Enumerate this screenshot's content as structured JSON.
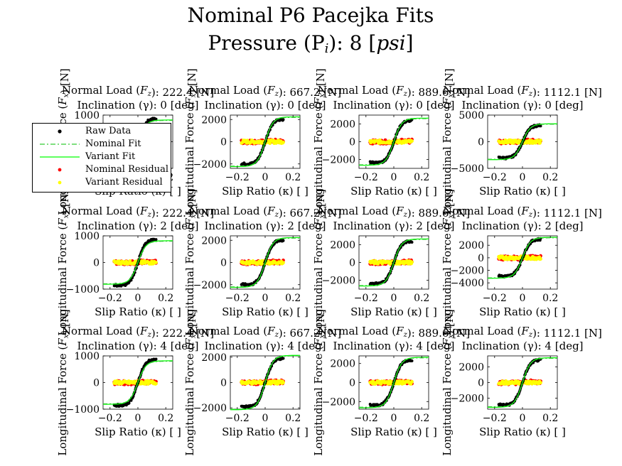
{
  "title_line1": "Nominal P6 Pacejka Fits",
  "title_line2": "Pressure (P",
  "title_line2_sub": "i",
  "title_line2_rest": "): 8 [",
  "title_line2_unit": "psi",
  "title_line2_end": "]",
  "colors": {
    "raw": "#000000",
    "nominal_fit": "#33cc33",
    "variant_fit": "#00ff00",
    "nominal_residual": "#ff0000",
    "variant_residual": "#ffff00"
  },
  "legend": [
    {
      "label": "Raw Data",
      "symbol": "dot",
      "color": "#000000"
    },
    {
      "label": "Nominal Fit",
      "symbol": "dashdot",
      "color": "#33cc33"
    },
    {
      "label": "Variant Fit",
      "symbol": "line",
      "color": "#00ff00"
    },
    {
      "label": "Nominal Residual",
      "symbol": "dot",
      "color": "#ff0000"
    },
    {
      "label": "Variant Residual",
      "symbol": "dot",
      "color": "#ffff00"
    }
  ],
  "chart_data": [
    {
      "type": "line",
      "row": 0,
      "col": 0,
      "title1": "Normal Load (F_z): 222.4 [N]",
      "title2": "Inclination (γ): 0 [deg]",
      "xlabel": "Slip Ratio (κ) [ ]",
      "ylabel": "Longitudinal Force (F_x) [N]",
      "xlim": [
        -0.25,
        0.25
      ],
      "ylim": [
        -1000,
        1000
      ],
      "yticks": [
        -1000,
        0,
        1000
      ],
      "xticks": [
        -0.2,
        0,
        0.2
      ],
      "peak": 900,
      "sat": 800
    },
    {
      "type": "line",
      "row": 0,
      "col": 1,
      "title1": "Normal Load (F_z): 667.2 [N]",
      "title2": "Inclination (γ): 0 [deg]",
      "xlabel": "Slip Ratio (κ) [ ]",
      "ylabel": "Longitudinal Force (F_x) [N]",
      "xlim": [
        -0.25,
        0.25
      ],
      "ylim": [
        -2400,
        2400
      ],
      "yticks": [
        -2000,
        0,
        2000
      ],
      "xticks": [
        -0.2,
        0,
        0.2
      ],
      "peak": 2100,
      "sat": 2200
    },
    {
      "type": "line",
      "row": 0,
      "col": 2,
      "title1": "Normal Load (F_z): 889.6 [N]",
      "title2": "Inclination (γ): 0 [deg]",
      "xlabel": "Slip Ratio (κ) [ ]",
      "ylabel": "Longitudinal Force (F_x) [N]",
      "xlim": [
        -0.25,
        0.25
      ],
      "ylim": [
        -3000,
        3000
      ],
      "yticks": [
        -2000,
        0,
        2000
      ],
      "xticks": [
        -0.2,
        0,
        0.2
      ],
      "peak": 2500,
      "sat": 2600
    },
    {
      "type": "line",
      "row": 0,
      "col": 3,
      "title1": "Normal Load (F_z): 1112.1 [N]",
      "title2": "Inclination (γ): 0 [deg]",
      "xlabel": "Slip Ratio (κ) [ ]",
      "ylabel": "Longitudinal Force (F_x) [N]",
      "xlim": [
        -0.25,
        0.25
      ],
      "ylim": [
        -5000,
        5000
      ],
      "yticks": [
        -5000,
        0,
        5000
      ],
      "xticks": [
        -0.2,
        0,
        0.2
      ],
      "peak": 3200,
      "sat": 3300
    },
    {
      "type": "line",
      "row": 1,
      "col": 0,
      "title1": "Normal Load (F_z): 222.4 [N]",
      "title2": "Inclination (γ): 2 [deg]",
      "xlabel": "Slip Ratio (κ) [ ]",
      "ylabel": "Longitudinal Force (F_x) [N]",
      "xlim": [
        -0.25,
        0.25
      ],
      "ylim": [
        -1000,
        1000
      ],
      "yticks": [
        -1000,
        0,
        1000
      ],
      "xticks": [
        -0.2,
        0,
        0.2
      ],
      "peak": 900,
      "sat": 800
    },
    {
      "type": "line",
      "row": 1,
      "col": 1,
      "title1": "Normal Load (F_z): 667.2 [N]",
      "title2": "Inclination (γ): 2 [deg]",
      "xlabel": "Slip Ratio (κ) [ ]",
      "ylabel": "Longitudinal Force (F_x) [N]",
      "xlim": [
        -0.25,
        0.25
      ],
      "ylim": [
        -2400,
        2400
      ],
      "yticks": [
        -2000,
        0,
        2000
      ],
      "xticks": [
        -0.2,
        0,
        0.2
      ],
      "peak": 2100,
      "sat": 2200
    },
    {
      "type": "line",
      "row": 1,
      "col": 2,
      "title1": "Normal Load (F_z): 889.6 [N]",
      "title2": "Inclination (γ): 2 [deg]",
      "xlabel": "Slip Ratio (κ) [ ]",
      "ylabel": "Longitudinal Force (F_x) [N]",
      "xlim": [
        -0.25,
        0.25
      ],
      "ylim": [
        -3000,
        3000
      ],
      "yticks": [
        -2000,
        0,
        2000
      ],
      "xticks": [
        -0.2,
        0,
        0.2
      ],
      "peak": 2500,
      "sat": 2600
    },
    {
      "type": "line",
      "row": 1,
      "col": 3,
      "title1": "Normal Load (F_z): 1112.1 [N]",
      "title2": "Inclination (γ): 2 [deg]",
      "xlabel": "Slip Ratio (κ) [ ]",
      "ylabel": "Longitudinal Force (F_x) [N]",
      "xlim": [
        -0.25,
        0.25
      ],
      "ylim": [
        -5000,
        3500
      ],
      "yticks": [
        -4000,
        -2000,
        0,
        2000
      ],
      "xticks": [
        -0.2,
        0,
        0.2
      ],
      "peak": 3100,
      "sat": 3200
    },
    {
      "type": "line",
      "row": 2,
      "col": 0,
      "title1": "Normal Load (F_z): 222.4 [N]",
      "title2": "Inclination (γ): 4 [deg]",
      "xlabel": "Slip Ratio (κ) [ ]",
      "ylabel": "Longitudinal Force (F_x) [N]",
      "xlim": [
        -0.25,
        0.25
      ],
      "ylim": [
        -1000,
        1000
      ],
      "yticks": [
        -1000,
        0,
        1000
      ],
      "xticks": [
        -0.2,
        0,
        0.2
      ],
      "peak": 900,
      "sat": 800
    },
    {
      "type": "line",
      "row": 2,
      "col": 1,
      "title1": "Normal Load (F_z): 667.2 [N]",
      "title2": "Inclination (γ): 4 [deg]",
      "xlabel": "Slip Ratio (κ) [ ]",
      "ylabel": "Longitudinal Force (F_x) [N]",
      "xlim": [
        -0.25,
        0.25
      ],
      "ylim": [
        -2100,
        2100
      ],
      "yticks": [
        -2000,
        0,
        2000
      ],
      "xticks": [
        -0.2,
        0,
        0.2
      ],
      "peak": 2000,
      "sat": 2100
    },
    {
      "type": "line",
      "row": 2,
      "col": 2,
      "title1": "Normal Load (F_z): 889.6 [N]",
      "title2": "Inclination (γ): 4 [deg]",
      "xlabel": "Slip Ratio (κ) [ ]",
      "ylabel": "Longitudinal Force (F_x) [N]",
      "xlim": [
        -0.25,
        0.25
      ],
      "ylim": [
        -2800,
        2800
      ],
      "yticks": [
        -2000,
        0,
        2000
      ],
      "xticks": [
        -0.2,
        0,
        0.2
      ],
      "peak": 2500,
      "sat": 2600
    },
    {
      "type": "line",
      "row": 2,
      "col": 3,
      "title1": "Normal Load (F_z): 1112.1 [N]",
      "title2": "Inclination (γ): 4 [deg]",
      "xlabel": "Slip Ratio (κ) [ ]",
      "ylabel": "Longitudinal Force (F_x) [N]",
      "xlim": [
        -0.25,
        0.25
      ],
      "ylim": [
        -3400,
        3400
      ],
      "yticks": [
        -2000,
        0,
        2000
      ],
      "xticks": [
        -0.2,
        0,
        0.2
      ],
      "peak": 3000,
      "sat": 3100
    }
  ]
}
